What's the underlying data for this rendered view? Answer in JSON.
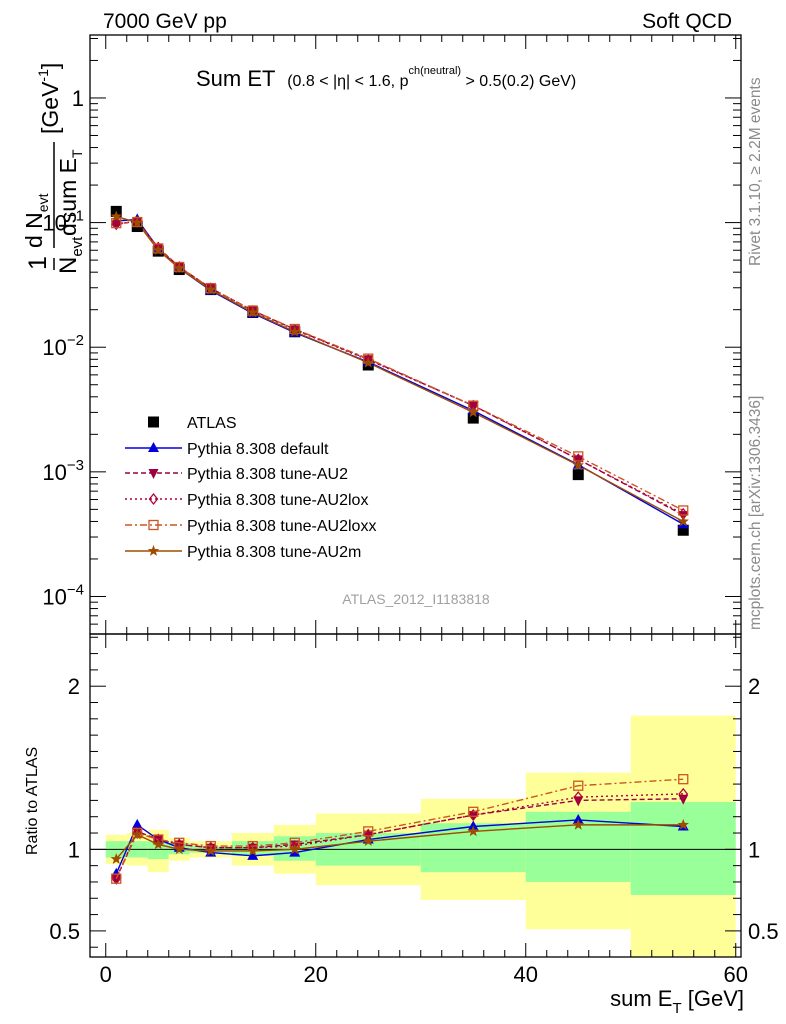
{
  "header": {
    "left": "7000 GeV pp",
    "right": "Soft QCD"
  },
  "side_labels": {
    "rivet": "Rivet 3.1.10, ≥ 2.2M events",
    "mcplots": "mcplots.cern.ch [arXiv:1306.3436]"
  },
  "plot_title": {
    "main": "Sum ET",
    "cut_open": "(0.8 < |η| < 1.6, p",
    "cut_sup": "ch(neutral)",
    "cut_close": " > 0.5(0.2) GeV)"
  },
  "analysis_id": "ATLAS_2012_I1183818",
  "ylabel": {
    "num": "d N",
    "num_sub": "evt",
    "one": "1",
    "den1": "N",
    "den1_sub": "evt",
    "den2": "dsum E",
    "den2_sub": "T",
    "unit": "[GeV",
    "unit_sup": "-1",
    "unit_close": "]"
  },
  "ratio_ylabel": "Ratio to ATLAS",
  "xlabel": {
    "main": "sum E",
    "sub": "T",
    "unit": " [GeV]"
  },
  "colors": {
    "atlas": "#000000",
    "default": "#0000dd",
    "au2": "#9b0040",
    "au2lox": "#b0003a",
    "au2loxx": "#cc5522",
    "au2m": "#a04c00",
    "band_inner": "#99ff99",
    "band_outer": "#ffff99"
  },
  "chart_data": [
    {
      "type": "line",
      "scale": "log",
      "x": [
        1,
        3,
        5,
        7,
        10,
        14,
        18,
        25,
        35,
        45,
        55
      ],
      "xlim": [
        -1.5,
        60.5
      ],
      "ylim": [
        5e-05,
        3.2
      ],
      "x_ticks": [
        "0",
        "20",
        "40",
        "60"
      ],
      "y_ticks": [
        "10^-4",
        "10^-3",
        "10^-2",
        "10^-1",
        "1"
      ],
      "legend_position": "center-left",
      "series": [
        {
          "name": "ATLAS",
          "style": "data",
          "values": [
            0.123,
            0.093,
            0.059,
            0.042,
            0.029,
            0.019,
            0.0133,
            0.0072,
            0.0027,
            0.00095,
            0.00034
          ]
        },
        {
          "name": "Pythia 8.308 default",
          "style": "triangle-up",
          "values": [
            0.103,
            0.106,
            0.062,
            0.043,
            0.0285,
            0.0187,
            0.0131,
            0.0076,
            0.0031,
            0.00114,
            0.00038
          ]
        },
        {
          "name": "Pythia 8.308 tune-AU2",
          "style": "triangle-down",
          "values": [
            0.097,
            0.103,
            0.063,
            0.044,
            0.0298,
            0.0197,
            0.0139,
            0.008,
            0.0034,
            0.00126,
            0.00045
          ]
        },
        {
          "name": "Pythia 8.308 tune-AU2lox",
          "style": "diamond",
          "values": [
            0.097,
            0.102,
            0.063,
            0.044,
            0.0297,
            0.0195,
            0.0138,
            0.0079,
            0.0034,
            0.00126,
            0.00046
          ]
        },
        {
          "name": "Pythia 8.308 tune-AU2loxx",
          "style": "square-open",
          "values": [
            0.099,
            0.101,
            0.062,
            0.044,
            0.0298,
            0.0197,
            0.014,
            0.0081,
            0.0034,
            0.00133,
            0.00049
          ]
        },
        {
          "name": "Pythia 8.308 tune-AU2m",
          "style": "star",
          "values": [
            0.112,
            0.1,
            0.06,
            0.043,
            0.0289,
            0.019,
            0.0133,
            0.0075,
            0.003,
            0.00113,
            0.0004
          ]
        }
      ]
    },
    {
      "type": "line",
      "scale": "linear",
      "x": [
        1,
        3,
        5,
        7,
        10,
        14,
        18,
        25,
        35,
        45,
        55
      ],
      "xlim": [
        -1.5,
        60.5
      ],
      "ylim": [
        0.34,
        2.32
      ],
      "y_ticks": [
        "0.5",
        "1",
        "2"
      ],
      "bands": {
        "edges": [
          0,
          2,
          4,
          6,
          8,
          12,
          16,
          20,
          30,
          40,
          50,
          60
        ],
        "inner_lo": [
          0.95,
          0.95,
          0.94,
          0.97,
          0.98,
          0.96,
          0.93,
          0.9,
          0.86,
          0.8,
          0.72
        ],
        "inner_hi": [
          1.05,
          1.05,
          1.05,
          1.04,
          1.02,
          1.05,
          1.08,
          1.1,
          1.16,
          1.23,
          1.29
        ],
        "outer_lo": [
          0.91,
          0.9,
          0.86,
          0.93,
          0.95,
          0.9,
          0.85,
          0.78,
          0.69,
          0.51,
          0.34
        ],
        "outer_hi": [
          1.09,
          1.1,
          1.12,
          1.07,
          1.05,
          1.1,
          1.15,
          1.22,
          1.31,
          1.47,
          1.82
        ]
      },
      "series": [
        {
          "name": "Pythia 8.308 default",
          "values": [
            0.85,
            1.15,
            1.06,
            1.01,
            0.98,
            0.96,
            0.98,
            1.06,
            1.14,
            1.18,
            1.14
          ]
        },
        {
          "name": "Pythia 8.308 tune-AU2",
          "values": [
            0.82,
            1.11,
            1.06,
            1.03,
            1.01,
            1.01,
            1.03,
            1.09,
            1.21,
            1.3,
            1.31
          ]
        },
        {
          "name": "Pythia 8.308 tune-AU2lox",
          "values": [
            0.82,
            1.1,
            1.06,
            1.03,
            1.01,
            1.01,
            1.02,
            1.09,
            1.21,
            1.32,
            1.34
          ]
        },
        {
          "name": "Pythia 8.308 tune-AU2loxx",
          "values": [
            0.82,
            1.1,
            1.06,
            1.04,
            1.02,
            1.02,
            1.04,
            1.11,
            1.23,
            1.39,
            1.43
          ]
        },
        {
          "name": "Pythia 8.308 tune-AU2m",
          "values": [
            0.94,
            1.09,
            1.03,
            1.0,
            0.99,
            0.99,
            1.0,
            1.05,
            1.11,
            1.15,
            1.15
          ]
        }
      ]
    }
  ]
}
